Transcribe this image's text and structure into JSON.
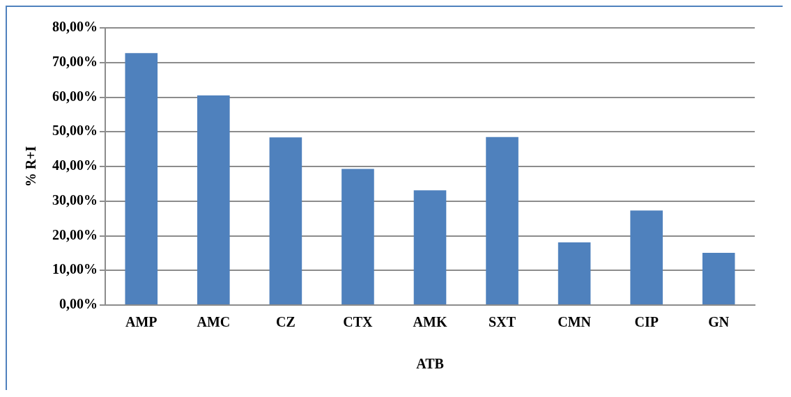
{
  "chart_data": {
    "type": "bar",
    "xlabel": "ATB",
    "ylabel": "% R+I",
    "categories": [
      "AMP",
      "AMC",
      "CZ",
      "CTX",
      "AMK",
      "SXT",
      "CMN",
      "CIP",
      "GN"
    ],
    "values": [
      72.7,
      60.5,
      48.4,
      39.3,
      33.1,
      48.5,
      18.1,
      27.3,
      15.1
    ],
    "color": "#4f81bd",
    "ylim": [
      0,
      80
    ],
    "yticks": [
      {
        "value": 0,
        "label": "0,00%"
      },
      {
        "value": 10,
        "label": "10,00%"
      },
      {
        "value": 20,
        "label": "20,00%"
      },
      {
        "value": 30,
        "label": "30,00%"
      },
      {
        "value": 40,
        "label": "40,00%"
      },
      {
        "value": 50,
        "label": "50,00%"
      },
      {
        "value": 60,
        "label": "60,00%"
      },
      {
        "value": 70,
        "label": "70,00%"
      },
      {
        "value": 80,
        "label": "80,00%"
      }
    ],
    "grid": "y",
    "legend": false
  }
}
